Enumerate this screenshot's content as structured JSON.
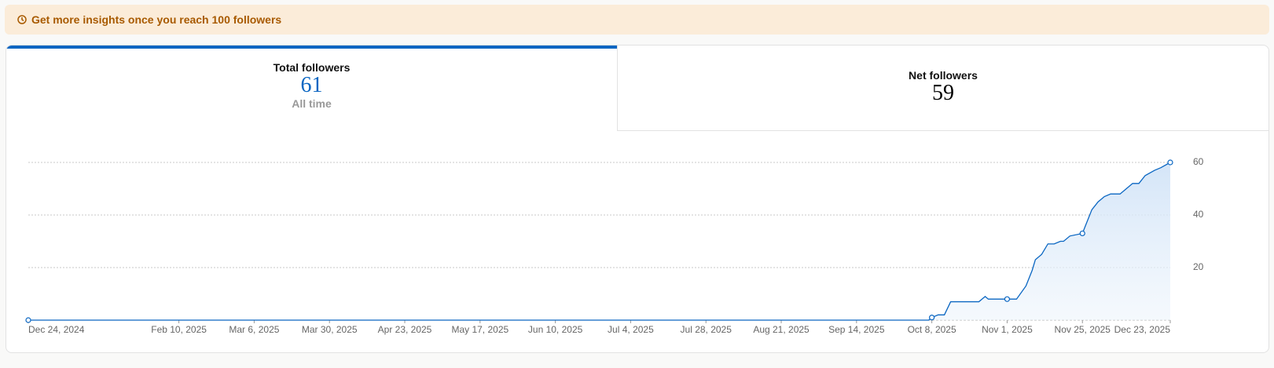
{
  "banner": {
    "text": "Get more insights once you reach 100 followers"
  },
  "tabs": [
    {
      "title": "Total followers",
      "value": 61,
      "caption": "All time"
    },
    {
      "title": "Net followers",
      "value": 59
    }
  ],
  "chart_data": {
    "type": "line",
    "color": "#0a66c2",
    "area": true,
    "grid": true,
    "x": [
      "2024-12-24",
      "2025-10-07",
      "2025-10-08",
      "2025-10-10",
      "2025-10-12",
      "2025-10-14",
      "2025-10-23",
      "2025-10-25",
      "2025-10-26",
      "2025-11-01",
      "2025-11-04",
      "2025-11-07",
      "2025-11-09",
      "2025-11-10",
      "2025-11-12",
      "2025-11-14",
      "2025-11-16",
      "2025-11-18",
      "2025-11-19",
      "2025-11-21",
      "2025-11-25",
      "2025-11-26",
      "2025-11-28",
      "2025-11-30",
      "2025-12-02",
      "2025-12-04",
      "2025-12-07",
      "2025-12-09",
      "2025-12-11",
      "2025-12-13",
      "2025-12-15",
      "2025-12-18",
      "2025-12-20",
      "2025-12-23"
    ],
    "values": [
      0,
      0,
      1,
      2,
      2,
      7,
      7,
      9,
      8,
      8,
      8,
      13,
      19,
      23,
      25,
      29,
      29,
      30,
      30,
      32,
      33,
      36,
      42,
      45,
      47,
      48,
      48,
      50,
      52,
      52,
      55,
      57,
      58,
      60
    ],
    "xlim": [
      "2024-12-24",
      "2025-12-23"
    ],
    "xticks": [
      {
        "value": "2024-12-24",
        "label": "Dec 24, 2024"
      },
      {
        "value": "2025-02-10",
        "label": "Feb 10, 2025"
      },
      {
        "value": "2025-03-06",
        "label": "Mar 6, 2025"
      },
      {
        "value": "2025-03-30",
        "label": "Mar 30, 2025"
      },
      {
        "value": "2025-04-23",
        "label": "Apr 23, 2025"
      },
      {
        "value": "2025-05-17",
        "label": "May 17, 2025"
      },
      {
        "value": "2025-06-10",
        "label": "Jun 10, 2025"
      },
      {
        "value": "2025-07-04",
        "label": "Jul 4, 2025"
      },
      {
        "value": "2025-07-28",
        "label": "Jul 28, 2025"
      },
      {
        "value": "2025-08-21",
        "label": "Aug 21, 2025"
      },
      {
        "value": "2025-09-14",
        "label": "Sep 14, 2025"
      },
      {
        "value": "2025-10-08",
        "label": "Oct 8, 2025"
      },
      {
        "value": "2025-11-01",
        "label": "Nov 1, 2025"
      },
      {
        "value": "2025-11-25",
        "label": "Nov 25, 2025"
      },
      {
        "value": "2025-12-23",
        "label": "Dec 23, 2025"
      }
    ],
    "ylim": [
      0,
      60
    ],
    "yticks": [
      20,
      40,
      60
    ]
  }
}
